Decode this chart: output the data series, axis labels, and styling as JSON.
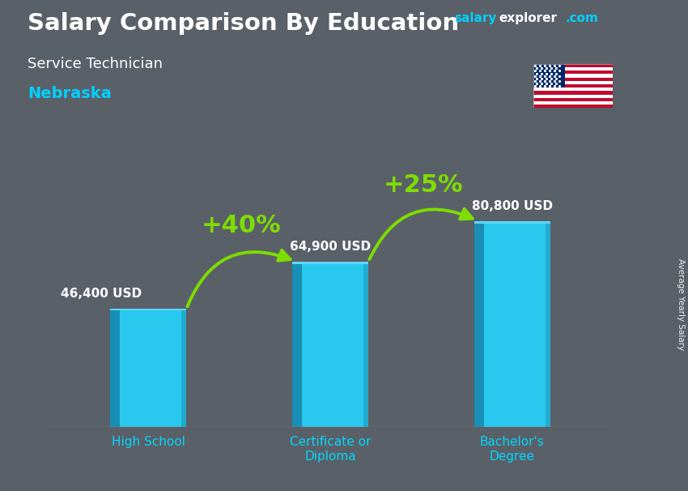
{
  "title_main": "Salary Comparison By Education",
  "title_sub": "Service Technician",
  "title_location": "Nebraska",
  "watermark_salary": "salary",
  "watermark_explorer": "explorer",
  "watermark_com": ".com",
  "ylabel_side": "Average Yearly Salary",
  "categories": [
    "High School",
    "Certificate or\nDiploma",
    "Bachelor's\nDegree"
  ],
  "values": [
    46400,
    64900,
    80800
  ],
  "value_labels": [
    "46,400 USD",
    "64,900 USD",
    "80,800 USD"
  ],
  "pct_labels": [
    "+40%",
    "+25%"
  ],
  "bar_color_main": "#29c8ef",
  "bar_color_left": "#1a8fb5",
  "bar_color_top": "#5dd8f5",
  "bar_shadow": "#0a6080",
  "bg_color": "#5a6068",
  "arrow_color": "#7ddd00",
  "text_color_white": "#ffffff",
  "text_color_cyan": "#00d0ff",
  "watermark_color_salary": "#00d0ff",
  "watermark_color_com": "#00d0ff",
  "cat_label_color": "#00d8ff",
  "figsize": [
    8.5,
    6.06
  ],
  "dpi": 100,
  "ylim_max": 100000,
  "bar_width": 0.42,
  "bar_3d_depth": 0.06
}
